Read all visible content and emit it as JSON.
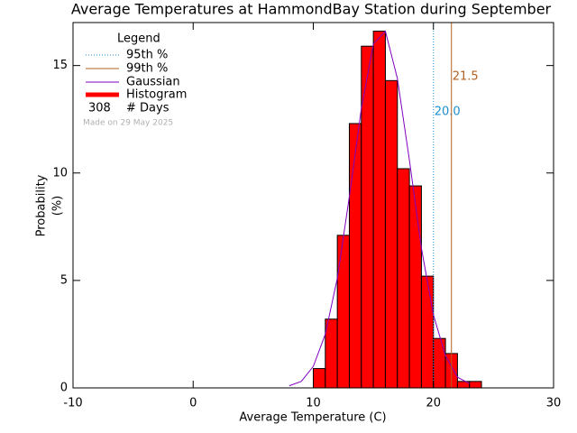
{
  "chart_data": {
    "type": "histogram",
    "title": "Average Temperatures at HammondBay Station during September",
    "x_label": "Average Temperature (C)",
    "y_label_lines": [
      "Probability",
      "(%)"
    ],
    "bins": [
      10,
      11,
      12,
      13,
      14,
      15,
      16,
      17,
      18,
      19,
      20,
      21,
      22,
      23,
      24
    ],
    "values": [
      0.9,
      3.2,
      7.1,
      12.3,
      15.9,
      16.6,
      14.3,
      10.2,
      9.4,
      5.2,
      2.3,
      1.6,
      0.3,
      0.3
    ],
    "color": "#ff0000",
    "xlim": [
      -10,
      30
    ],
    "xticks": [
      -10,
      0,
      10,
      20,
      30
    ],
    "ylim": [
      0,
      17
    ],
    "yticks": [
      0,
      5,
      10,
      15
    ],
    "gaussian": {
      "name": "Gaussian",
      "color": "#8000c0",
      "x": [
        8,
        9,
        10,
        11,
        12,
        13,
        14,
        15,
        16,
        17,
        18,
        19,
        20,
        21,
        22,
        23
      ],
      "values": [
        0.1,
        0.3,
        1.0,
        2.5,
        5.1,
        8.9,
        13.0,
        16.0,
        16.6,
        14.4,
        10.6,
        6.5,
        3.4,
        1.5,
        0.5,
        0.2
      ]
    },
    "percentiles": [
      {
        "name": "95th %",
        "color": "#1f8fd0",
        "dotted": true,
        "value": 20.0,
        "label": "20.0"
      },
      {
        "name": "99th %",
        "color": "#b06020",
        "dotted": false,
        "value": 21.5,
        "label": "21.5"
      }
    ],
    "legend_title": "Legend",
    "histogram_name": "Histogram",
    "count": 308,
    "count_label": "# Days",
    "footnote": "Made on 29 May 2025"
  }
}
